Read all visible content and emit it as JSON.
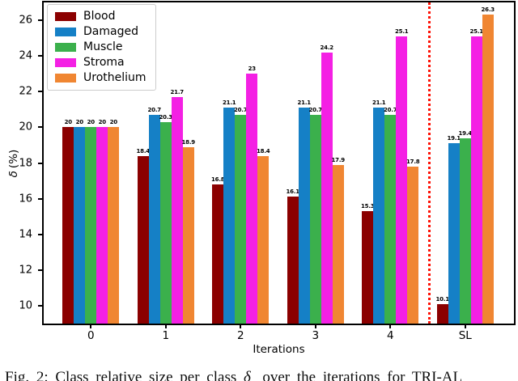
{
  "figure": {
    "xlabel": "Iterations",
    "ylabel": {
      "symbol": "δ",
      "unit": "(%)"
    },
    "caption": {
      "prefix": "Fig. 2: Class relative size per class ",
      "symbol": "δ",
      "subscript": "c",
      "suffix": " over the iterations for TRI-AL"
    }
  },
  "chart_data": {
    "type": "bar",
    "title": "",
    "xlabel": "Iterations",
    "ylabel": "δ (%)",
    "categories": [
      "0",
      "1",
      "2",
      "3",
      "4",
      "SL"
    ],
    "series": [
      {
        "name": "Blood",
        "color": "#8b0000",
        "values": [
          20,
          18.4,
          16.8,
          16.1,
          15.3,
          10.1
        ]
      },
      {
        "name": "Damaged",
        "color": "#1580c6",
        "values": [
          20,
          20.7,
          21.1,
          21.1,
          21.1,
          19.1
        ]
      },
      {
        "name": "Muscle",
        "color": "#3bb04c",
        "values": [
          20,
          20.3,
          20.7,
          20.7,
          20.7,
          19.4
        ]
      },
      {
        "name": "Stroma",
        "color": "#f420e4",
        "values": [
          20,
          21.7,
          23,
          24.2,
          25.1,
          25.1
        ]
      },
      {
        "name": "Urothelium",
        "color": "#f08632",
        "values": [
          20,
          18.9,
          18.4,
          17.9,
          17.8,
          26.3
        ]
      }
    ],
    "ylim": [
      9,
      27
    ],
    "yticks": [
      10,
      12,
      14,
      16,
      18,
      20,
      22,
      24,
      26
    ],
    "bar_value_labels": true,
    "grid": false,
    "legend_position": "upper left",
    "separator": {
      "x": 4.5,
      "style": "dotted",
      "color": "#ff1105"
    }
  }
}
